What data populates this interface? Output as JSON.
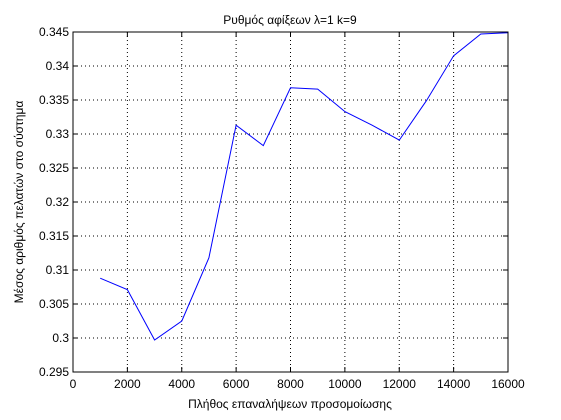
{
  "chart_data": {
    "type": "line",
    "title": "Ρυθμός αφίξεων λ=1 k=9",
    "xlabel": "Πλήθος επαναλήψεων προσομοίωσης",
    "ylabel": "Μέσος αριθμός πελατών στο σύστημα",
    "xlim": [
      0,
      16000
    ],
    "ylim": [
      0.295,
      0.345
    ],
    "xticks": [
      0,
      2000,
      4000,
      6000,
      8000,
      10000,
      12000,
      14000,
      16000
    ],
    "xtick_labels": [
      "0",
      "2000",
      "4000",
      "6000",
      "8000",
      "10000",
      "12000",
      "14000",
      "16000"
    ],
    "yticks": [
      0.295,
      0.3,
      0.305,
      0.31,
      0.315,
      0.32,
      0.325,
      0.33,
      0.335,
      0.34,
      0.345
    ],
    "ytick_labels": [
      "0.295",
      "0.3",
      "0.305",
      "0.31",
      "0.315",
      "0.32",
      "0.325",
      "0.33",
      "0.335",
      "0.34",
      "0.345"
    ],
    "grid": true,
    "grid_style": "dotted",
    "series": [
      {
        "color": "#0000ff",
        "x": [
          1000,
          2000,
          3000,
          4000,
          5000,
          6000,
          7000,
          8000,
          9000,
          10000,
          11000,
          12000,
          13000,
          14000,
          15000,
          16000
        ],
        "y": [
          0.3088,
          0.3071,
          0.2997,
          0.3025,
          0.3118,
          0.3313,
          0.3283,
          0.3368,
          0.3366,
          0.3333,
          0.3313,
          0.3291,
          0.3349,
          0.3415,
          0.3447,
          0.3449
        ]
      }
    ]
  }
}
